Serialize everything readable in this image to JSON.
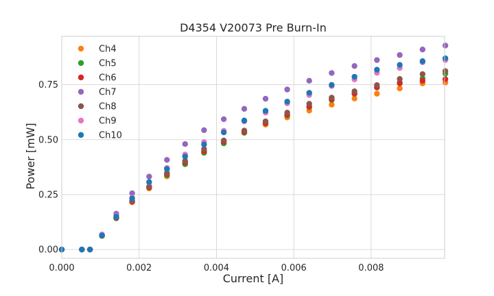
{
  "chart_data": {
    "type": "scatter",
    "title": "D4354 V20073 Pre Burn-In",
    "xlabel": "Current [A]",
    "ylabel": "Power [mW]",
    "xlim": [
      0,
      0.0099
    ],
    "ylim": [
      -0.04,
      0.97
    ],
    "xticks": [
      0,
      0.002,
      0.004,
      0.006,
      0.008
    ],
    "xtick_labels": [
      "0.000",
      "0.002",
      "0.004",
      "0.006",
      "0.008"
    ],
    "yticks": [
      0,
      0.25,
      0.5,
      0.75
    ],
    "ytick_labels": [
      "0.00",
      "0.25",
      "0.50",
      "0.75"
    ],
    "grid": true,
    "legend_position": "top-left",
    "x": [
      0,
      0.00052,
      0.00073,
      0.00104,
      0.00141,
      0.00182,
      0.00226,
      0.00272,
      0.00319,
      0.00368,
      0.00419,
      0.00472,
      0.00527,
      0.00583,
      0.0064,
      0.00698,
      0.00757,
      0.00815,
      0.00874,
      0.00933,
      0.00992
    ],
    "series": [
      {
        "name": "Ch4",
        "color": "#ff7f0e",
        "values": [
          0,
          0,
          0,
          0.062,
          0.143,
          0.215,
          0.278,
          0.333,
          0.391,
          0.441,
          0.49,
          0.532,
          0.568,
          0.601,
          0.632,
          0.659,
          0.687,
          0.709,
          0.733,
          0.756,
          0.76
        ]
      },
      {
        "name": "Ch5",
        "color": "#2ca02c",
        "values": [
          0,
          0,
          0,
          0.062,
          0.142,
          0.22,
          0.282,
          0.338,
          0.388,
          0.44,
          0.483,
          0.531,
          0.574,
          0.61,
          0.648,
          0.68,
          0.708,
          0.737,
          0.76,
          0.778,
          0.8
        ]
      },
      {
        "name": "Ch6",
        "color": "#d62728",
        "values": [
          0,
          0,
          0,
          0.063,
          0.145,
          0.218,
          0.283,
          0.343,
          0.396,
          0.447,
          0.49,
          0.535,
          0.575,
          0.613,
          0.65,
          0.684,
          0.71,
          0.738,
          0.756,
          0.768,
          0.775
        ]
      },
      {
        "name": "Ch7",
        "color": "#9467bd",
        "values": [
          0,
          0,
          0,
          0.068,
          0.163,
          0.256,
          0.332,
          0.408,
          0.48,
          0.543,
          0.593,
          0.64,
          0.686,
          0.728,
          0.768,
          0.803,
          0.835,
          0.862,
          0.885,
          0.91,
          0.928
        ]
      },
      {
        "name": "Ch8",
        "color": "#8c564b",
        "values": [
          0,
          0,
          0,
          0.063,
          0.144,
          0.221,
          0.287,
          0.348,
          0.403,
          0.457,
          0.496,
          0.541,
          0.583,
          0.623,
          0.663,
          0.691,
          0.72,
          0.748,
          0.776,
          0.798,
          0.812
        ]
      },
      {
        "name": "Ch9",
        "color": "#e377c2",
        "values": [
          0,
          0,
          0,
          0.066,
          0.154,
          0.236,
          0.306,
          0.371,
          0.432,
          0.489,
          0.54,
          0.583,
          0.623,
          0.665,
          0.703,
          0.744,
          0.774,
          0.804,
          0.826,
          0.852,
          0.862
        ]
      },
      {
        "name": "Ch10",
        "color": "#1f77b4",
        "values": [
          0,
          0,
          0,
          0.064,
          0.15,
          0.232,
          0.307,
          0.366,
          0.423,
          0.478,
          0.533,
          0.587,
          0.631,
          0.673,
          0.713,
          0.749,
          0.786,
          0.818,
          0.84,
          0.857,
          0.87
        ]
      }
    ]
  }
}
